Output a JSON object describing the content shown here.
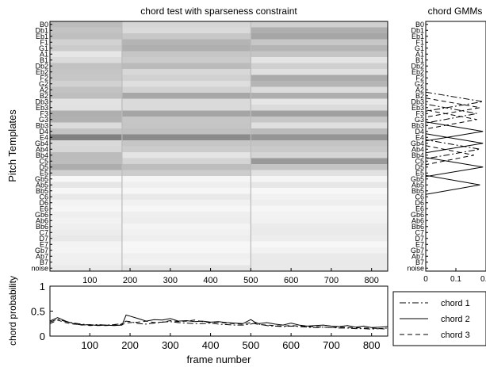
{
  "chart_data": [
    {
      "type": "heatmap",
      "title": "chord test with sparseness constraint",
      "ylabel": "Pitch Templates",
      "xlim": [
        1,
        840
      ],
      "x_ticks": [
        100,
        200,
        300,
        400,
        500,
        600,
        700,
        800
      ],
      "y_tick_labels": [
        "B0",
        "Db1",
        "Eb1",
        "F1",
        "G1",
        "A1",
        "B1",
        "Db2",
        "Eb2",
        "F2",
        "G2",
        "A2",
        "B2",
        "Db3",
        "Eb3",
        "F3",
        "G3",
        "Bb3",
        "D4",
        "E4",
        "Gb4",
        "Ab4",
        "Bb4",
        "C5",
        "D5",
        "E5",
        "Gb5",
        "Ab5",
        "Bb5",
        "C6",
        "D6",
        "E6",
        "Gb6",
        "Ab6",
        "Bb6",
        "C7",
        "D7",
        "E7",
        "Gb7",
        "Ab7",
        "B7",
        "noise"
      ],
      "colormap": "grayscale, dark = high activation",
      "segment_boundaries": [
        180,
        500
      ]
    },
    {
      "type": "line",
      "title": "chord GMMs",
      "xlim": [
        0,
        0.2
      ],
      "x_ticks": [
        "0",
        "0.1",
        "0.2"
      ],
      "y_tick_labels": [
        "B0",
        "Db1",
        "Eb1",
        "F1",
        "G1",
        "A1",
        "B1",
        "Db2",
        "Eb2",
        "F2",
        "G2",
        "A2",
        "B2",
        "Db3",
        "Eb3",
        "F3",
        "G3",
        "Bb3",
        "D4",
        "E4",
        "Gb4",
        "Ab4",
        "Bb4",
        "C5",
        "D5",
        "E5",
        "Gb5",
        "Ab5",
        "Bb5",
        "C6",
        "D6",
        "E6",
        "Gb6",
        "Ab6",
        "Bb6",
        "C7",
        "D7",
        "E7",
        "Gb7",
        "Ab7",
        "B7",
        "noise"
      ],
      "series": [
        {
          "name": "chord 1",
          "style": "dash-dot",
          "peaks": [
            {
              "pitch": "Db3",
              "value": 0.19
            },
            {
              "pitch": "Ab4",
              "value": 0.18
            },
            {
              "pitch": "F3",
              "value": 0.17
            }
          ]
        },
        {
          "name": "chord 2",
          "style": "solid",
          "peaks": [
            {
              "pitch": "D4",
              "value": 0.19
            },
            {
              "pitch": "Gb4",
              "value": 0.19
            },
            {
              "pitch": "D5",
              "value": 0.19
            },
            {
              "pitch": "Ab5",
              "value": 0.18
            }
          ]
        },
        {
          "name": "chord 3",
          "style": "dashed",
          "peaks": [
            {
              "pitch": "Eb3",
              "value": 0.18
            },
            {
              "pitch": "G3",
              "value": 0.17
            },
            {
              "pitch": "Bb4",
              "value": 0.16
            }
          ]
        }
      ]
    },
    {
      "type": "line",
      "xlabel": "frame number",
      "ylabel": "chord probability",
      "xlim": [
        1,
        840
      ],
      "ylim": [
        0,
        1
      ],
      "x_ticks": [
        100,
        200,
        300,
        400,
        500,
        600,
        700,
        800
      ],
      "y_ticks": [
        "0",
        "0.5",
        "1"
      ],
      "x": [
        1,
        20,
        40,
        60,
        80,
        100,
        120,
        140,
        160,
        180,
        190,
        200,
        220,
        240,
        260,
        280,
        300,
        320,
        340,
        360,
        380,
        400,
        420,
        440,
        460,
        480,
        500,
        510,
        520,
        540,
        560,
        580,
        600,
        620,
        640,
        660,
        680,
        700,
        720,
        740,
        760,
        780,
        800,
        820,
        840
      ],
      "series": [
        {
          "name": "chord 1",
          "style": "dash-dot",
          "values": [
            0.28,
            0.34,
            0.29,
            0.26,
            0.24,
            0.22,
            0.23,
            0.22,
            0.23,
            0.25,
            0.3,
            0.29,
            0.25,
            0.24,
            0.26,
            0.28,
            0.29,
            0.27,
            0.26,
            0.25,
            0.25,
            0.26,
            0.24,
            0.23,
            0.22,
            0.22,
            0.24,
            0.26,
            0.24,
            0.21,
            0.2,
            0.19,
            0.2,
            0.19,
            0.18,
            0.17,
            0.18,
            0.17,
            0.16,
            0.16,
            0.15,
            0.15,
            0.14,
            0.15,
            0.16
          ]
        },
        {
          "name": "chord 2",
          "style": "solid",
          "values": [
            0.3,
            0.37,
            0.3,
            0.25,
            0.22,
            0.23,
            0.21,
            0.22,
            0.21,
            0.22,
            0.42,
            0.4,
            0.35,
            0.3,
            0.33,
            0.32,
            0.35,
            0.3,
            0.31,
            0.29,
            0.3,
            0.28,
            0.29,
            0.27,
            0.26,
            0.25,
            0.33,
            0.28,
            0.25,
            0.27,
            0.24,
            0.22,
            0.26,
            0.22,
            0.2,
            0.21,
            0.22,
            0.2,
            0.19,
            0.21,
            0.18,
            0.2,
            0.17,
            0.18,
            0.19
          ]
        },
        {
          "name": "chord 3",
          "style": "dashed",
          "values": [
            0.25,
            0.32,
            0.27,
            0.24,
            0.23,
            0.21,
            0.22,
            0.21,
            0.22,
            0.23,
            0.26,
            0.27,
            0.28,
            0.3,
            0.27,
            0.28,
            0.31,
            0.29,
            0.3,
            0.32,
            0.29,
            0.27,
            0.28,
            0.26,
            0.25,
            0.24,
            0.27,
            0.25,
            0.23,
            0.22,
            0.21,
            0.2,
            0.21,
            0.2,
            0.19,
            0.19,
            0.18,
            0.17,
            0.18,
            0.17,
            0.17,
            0.16,
            0.16,
            0.15,
            0.14
          ]
        }
      ]
    }
  ],
  "legend": [
    "chord 1",
    "chord 2",
    "chord 3"
  ]
}
